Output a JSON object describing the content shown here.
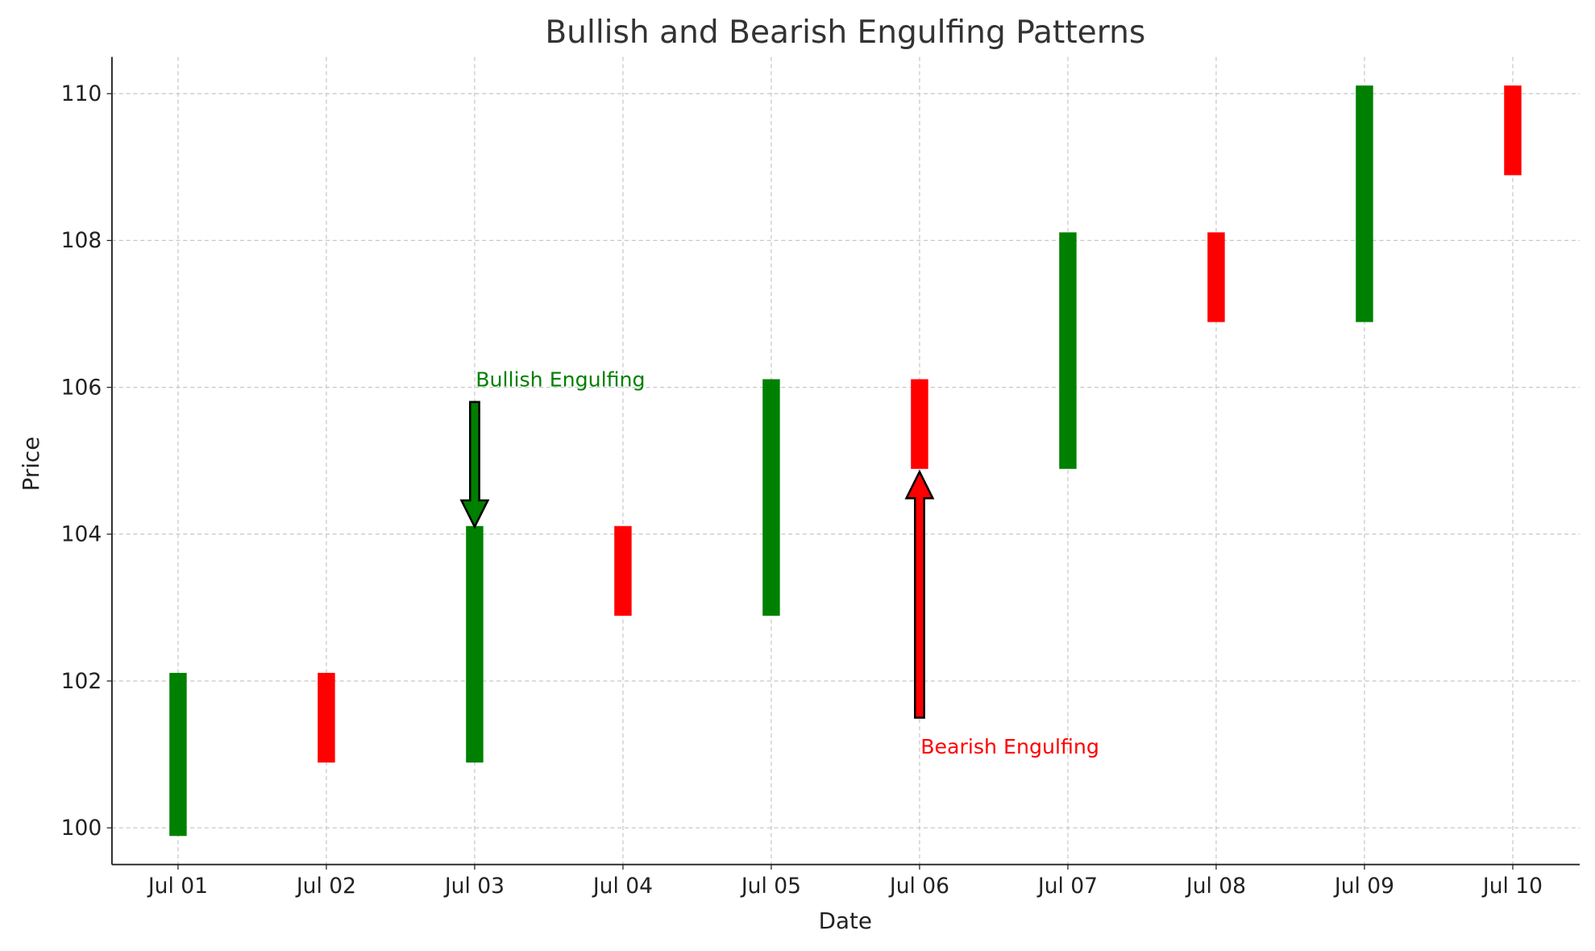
{
  "chart_data": {
    "type": "candlestick",
    "title": "Bullish and Bearish Engulfing Patterns",
    "xlabel": "Date",
    "ylabel": "Price",
    "categories": [
      "Jul 01",
      "Jul 02",
      "Jul 03",
      "Jul 04",
      "Jul 05",
      "Jul 06",
      "Jul 07",
      "Jul 08",
      "Jul 09",
      "Jul 10"
    ],
    "open": [
      100,
      102,
      101,
      104,
      103,
      106,
      105,
      108,
      107,
      110
    ],
    "close": [
      102,
      101,
      104,
      103,
      106,
      105,
      108,
      107,
      110,
      109
    ],
    "yticks": [
      100,
      102,
      104,
      106,
      108,
      110
    ],
    "ylim": [
      99.5,
      110.5
    ],
    "grid": true,
    "colors": {
      "up": "#008000",
      "down": "#ff0000"
    },
    "annotations": [
      {
        "text": "Bullish Engulfing",
        "category": "Jul 03",
        "text_y": 106,
        "arrow_from": 105.8,
        "arrow_to": 104.1,
        "color": "#008000"
      },
      {
        "text": "Bearish Engulfing",
        "category": "Jul 06",
        "text_y": 101,
        "arrow_from": 101.5,
        "arrow_to": 104.85,
        "color": "#ff0000"
      }
    ]
  }
}
